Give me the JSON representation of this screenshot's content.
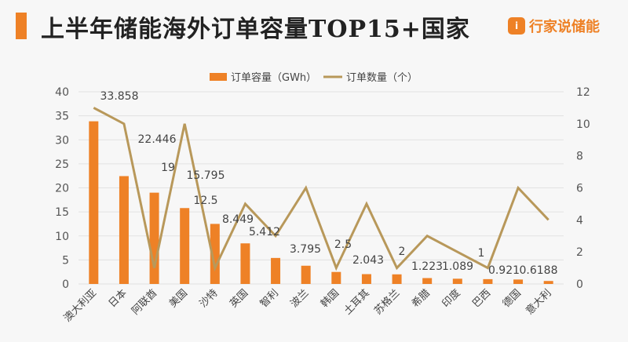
{
  "header": {
    "title": "上半年储能海外订单容量TOP15+国家",
    "logo_text": "行家说储能",
    "logo_icon": "i"
  },
  "colors": {
    "bar": "#ee8126",
    "line": "#b8985a",
    "accent": "#ee8126"
  },
  "chart_data": {
    "type": "bar+line",
    "categories": [
      "澳大利亚",
      "日本",
      "阿联酋",
      "美国",
      "沙特",
      "英国",
      "智利",
      "波兰",
      "韩国",
      "土耳其",
      "苏格兰",
      "希腊",
      "印度",
      "巴西",
      "德国",
      "意大利"
    ],
    "series": [
      {
        "name": "订单容量（GWh）",
        "type": "bar",
        "axis": "left",
        "values": [
          33.858,
          22.446,
          19,
          15.795,
          12.5,
          8.449,
          5.412,
          3.795,
          2.5,
          2.043,
          2,
          1.223,
          1.089,
          1,
          0.921,
          0.6188
        ],
        "labels": [
          "33.858",
          "22.446",
          "19",
          "15.795",
          "12.5",
          "8.449",
          "5.412",
          "3.795",
          "2.5",
          "2.043",
          "2",
          "1.223",
          "1.089",
          "1",
          "0.921",
          "0.6188"
        ]
      },
      {
        "name": "订单数量（个）",
        "type": "line",
        "axis": "right",
        "values": [
          11,
          10,
          1,
          10,
          1,
          5,
          3,
          6,
          1,
          5,
          1,
          3,
          2,
          1,
          6,
          4
        ]
      }
    ],
    "y_left": {
      "range": [
        0,
        40
      ],
      "ticks": [
        "0",
        "5",
        "10",
        "15",
        "20",
        "25",
        "30",
        "35",
        "40"
      ]
    },
    "y_right": {
      "range": [
        0,
        12
      ],
      "ticks": [
        "0",
        "2",
        "4",
        "6",
        "8",
        "10",
        "12"
      ]
    },
    "grid": true,
    "legend": "top"
  }
}
